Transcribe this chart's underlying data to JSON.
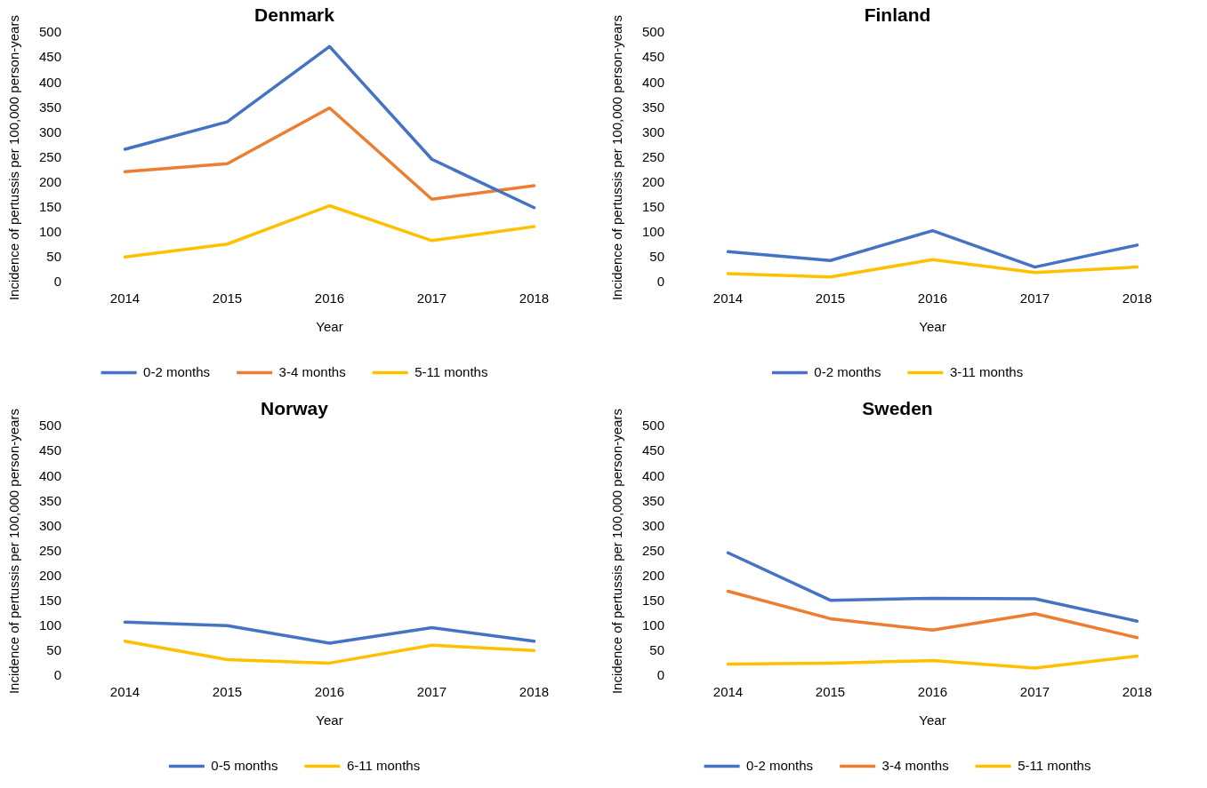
{
  "chart_data": [
    {
      "type": "line",
      "title": "Denmark",
      "xlabel": "Year",
      "ylabel": "Incidence of pertussis per 100,000 person-years",
      "categories": [
        "2014",
        "2015",
        "2016",
        "2017",
        "2018"
      ],
      "ylim": [
        0,
        500
      ],
      "yticks": [
        0,
        50,
        100,
        150,
        200,
        250,
        300,
        350,
        400,
        450,
        500
      ],
      "grid": false,
      "legend": "bottom",
      "marker": "none",
      "series": [
        {
          "name": "0-2 months",
          "color": "#4472c4",
          "values": [
            267,
            322,
            473,
            247,
            150
          ]
        },
        {
          "name": "3-4 months",
          "color": "#ed7d31",
          "values": [
            222,
            238,
            350,
            167,
            194
          ]
        },
        {
          "name": "5-11 months",
          "color": "#ffc000",
          "values": [
            51,
            77,
            154,
            84,
            112
          ]
        }
      ]
    },
    {
      "type": "line",
      "title": "Finland",
      "xlabel": "Year",
      "ylabel": "Incidence of pertussis per 100,000 person-years",
      "categories": [
        "2014",
        "2015",
        "2016",
        "2017",
        "2018"
      ],
      "ylim": [
        0,
        500
      ],
      "yticks": [
        0,
        50,
        100,
        150,
        200,
        250,
        300,
        350,
        400,
        450,
        500
      ],
      "grid": false,
      "legend": "bottom",
      "marker": "none",
      "series": [
        {
          "name": "0-2 months",
          "color": "#4472c4",
          "values": [
            62,
            44,
            104,
            31,
            75
          ]
        },
        {
          "name": "3-11 months",
          "color": "#ffc000",
          "values": [
            18,
            11,
            46,
            20,
            31
          ]
        }
      ]
    },
    {
      "type": "line",
      "title": "Norway",
      "xlabel": "Year",
      "ylabel": "Incidence of pertussis per 100,000 person-years",
      "categories": [
        "2014",
        "2015",
        "2016",
        "2017",
        "2018"
      ],
      "ylim": [
        0,
        500
      ],
      "yticks": [
        0,
        50,
        100,
        150,
        200,
        250,
        300,
        350,
        400,
        450,
        500
      ],
      "grid": false,
      "legend": "bottom",
      "marker": "none",
      "series": [
        {
          "name": "0-5 months",
          "color": "#4472c4",
          "values": [
            108,
            101,
            66,
            97,
            70
          ]
        },
        {
          "name": "6-11 months",
          "color": "#ffc000",
          "values": [
            70,
            33,
            26,
            62,
            51
          ]
        }
      ]
    },
    {
      "type": "line",
      "title": "Sweden",
      "xlabel": "Year",
      "ylabel": "Incidence of pertussis per 100,000 person-years",
      "categories": [
        "2014",
        "2015",
        "2016",
        "2017",
        "2018"
      ],
      "ylim": [
        0,
        500
      ],
      "yticks": [
        0,
        50,
        100,
        150,
        200,
        250,
        300,
        350,
        400,
        450,
        500
      ],
      "grid": false,
      "legend": "bottom",
      "marker": "none",
      "series": [
        {
          "name": "0-2 months",
          "color": "#4472c4",
          "values": [
            247,
            152,
            156,
            155,
            110
          ]
        },
        {
          "name": "3-4 months",
          "color": "#ed7d31",
          "values": [
            170,
            115,
            92,
            125,
            77
          ]
        },
        {
          "name": "5-11 months",
          "color": "#ffc000",
          "values": [
            24,
            26,
            31,
            16,
            40
          ]
        }
      ]
    }
  ]
}
